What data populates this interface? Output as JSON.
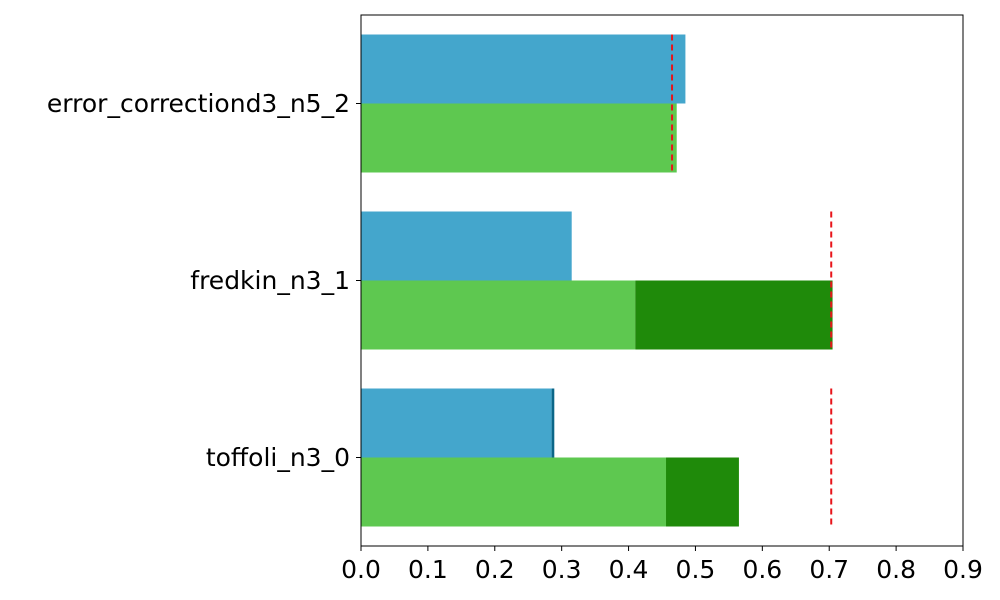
{
  "chart_data": {
    "type": "bar",
    "orientation": "horizontal",
    "title": "",
    "xlabel": "",
    "ylabel": "",
    "xlim": [
      0,
      0.9
    ],
    "xticks": [
      0.0,
      0.1,
      0.2,
      0.3,
      0.4,
      0.5,
      0.6,
      0.7,
      0.8,
      0.9
    ],
    "xtick_labels": [
      "0.0",
      "0.1",
      "0.2",
      "0.3",
      "0.4",
      "0.5",
      "0.6",
      "0.7",
      "0.8",
      "0.9"
    ],
    "categories": [
      "error_correctiond3_n5_2",
      "fredkin_n3_1",
      "toffoli_n3_0"
    ],
    "grid": false,
    "series": [
      {
        "position": "upper",
        "segments": [
          {
            "color": "#44a6cc",
            "values": [
              0.485,
              0.315,
              0.285
            ]
          },
          {
            "color": "#0b6688",
            "values": [
              0.0,
              0.0,
              0.004
            ]
          }
        ]
      },
      {
        "position": "lower",
        "segments": [
          {
            "color": "#5ec850",
            "values": [
              0.472,
              0.41,
              0.456
            ]
          },
          {
            "color": "#1f8a0a",
            "values": [
              0.0,
              0.295,
              0.109
            ]
          }
        ]
      }
    ],
    "reference_lines": {
      "color": "#e8141a",
      "style": "dashed",
      "values": [
        0.465,
        0.703,
        0.703
      ]
    }
  }
}
